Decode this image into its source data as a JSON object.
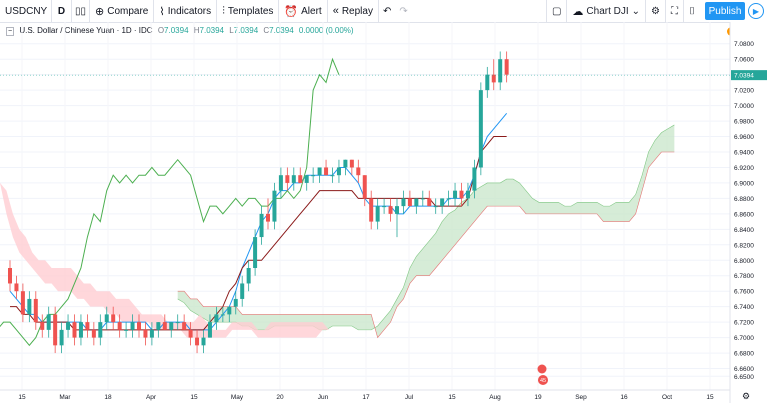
{
  "toolbar": {
    "symbol": "USDCNY",
    "interval": "D",
    "compare": "Compare",
    "indicators": "Indicators",
    "templates": "Templates",
    "alert": "Alert",
    "replay": "Replay",
    "chart_name": "Chart DJI",
    "publish": "Publish"
  },
  "legend": {
    "title": "U.S. Dollar / Chinese Yuan · 1D · IDC",
    "open_label": "O",
    "open": "7.0394",
    "high_label": "H",
    "high": "7.0394",
    "low_label": "L",
    "low": "7.0394",
    "close_label": "C",
    "close": "7.0394",
    "change": "0.0000 (0.00%)"
  },
  "alert_badge": "!",
  "price_label": "7.0394",
  "event_label": "45",
  "colors": {
    "up": "#26a69a",
    "down": "#ef5350",
    "accent": "#2196f3",
    "conversion": "#2196f3",
    "base": "#8b1a1a",
    "lagging": "#4caf50",
    "cloud_bull": "#c8e6c9",
    "cloud_bear": "#ffcdd2"
  },
  "chart_data": {
    "type": "candlestick",
    "indicator": "Ichimoku Cloud",
    "ylim": [
      6.64,
      7.09
    ],
    "y_ticks": [
      "7.0800",
      "7.0600",
      "7.0400",
      "7.0200",
      "7.0000",
      "6.9800",
      "6.9600",
      "6.9400",
      "6.9200",
      "6.9000",
      "6.8800",
      "6.8600",
      "6.8400",
      "6.8200",
      "6.8000",
      "6.7800",
      "6.7600",
      "6.7400",
      "6.7200",
      "6.7000",
      "6.6800",
      "6.6600",
      "6.6500"
    ],
    "x_ticks": [
      "15",
      "Mar",
      "18",
      "Apr",
      "15",
      "May",
      "20",
      "Jun",
      "17",
      "Jul",
      "15",
      "Aug",
      "19",
      "Sep",
      "16",
      "Oct",
      "15"
    ],
    "last_price": 7.0394,
    "candles": [
      [
        6.79,
        6.8,
        6.76,
        6.77
      ],
      [
        6.77,
        6.78,
        6.75,
        6.76
      ],
      [
        6.76,
        6.77,
        6.72,
        6.73
      ],
      [
        6.73,
        6.76,
        6.72,
        6.75
      ],
      [
        6.75,
        6.76,
        6.71,
        6.72
      ],
      [
        6.72,
        6.73,
        6.7,
        6.71
      ],
      [
        6.71,
        6.74,
        6.7,
        6.73
      ],
      [
        6.73,
        6.74,
        6.68,
        6.69
      ],
      [
        6.69,
        6.72,
        6.68,
        6.71
      ],
      [
        6.71,
        6.73,
        6.7,
        6.72
      ],
      [
        6.72,
        6.73,
        6.69,
        6.7
      ],
      [
        6.7,
        6.73,
        6.69,
        6.72
      ],
      [
        6.72,
        6.73,
        6.7,
        6.71
      ],
      [
        6.71,
        6.72,
        6.69,
        6.7
      ],
      [
        6.7,
        6.73,
        6.69,
        6.72
      ],
      [
        6.72,
        6.74,
        6.71,
        6.73
      ],
      [
        6.73,
        6.74,
        6.71,
        6.72
      ],
      [
        6.72,
        6.73,
        6.7,
        6.71
      ],
      [
        6.71,
        6.72,
        6.7,
        6.71
      ],
      [
        6.71,
        6.73,
        6.7,
        6.72
      ],
      [
        6.72,
        6.73,
        6.7,
        6.71
      ],
      [
        6.71,
        6.72,
        6.69,
        6.7
      ],
      [
        6.7,
        6.72,
        6.69,
        6.71
      ],
      [
        6.71,
        6.72,
        6.7,
        6.72
      ],
      [
        6.72,
        6.73,
        6.71,
        6.71
      ],
      [
        6.71,
        6.72,
        6.7,
        6.72
      ],
      [
        6.72,
        6.73,
        6.71,
        6.72
      ],
      [
        6.72,
        6.73,
        6.71,
        6.71
      ],
      [
        6.71,
        6.72,
        6.69,
        6.7
      ],
      [
        6.7,
        6.71,
        6.68,
        6.69
      ],
      [
        6.69,
        6.71,
        6.68,
        6.7
      ],
      [
        6.7,
        6.73,
        6.7,
        6.72
      ],
      [
        6.72,
        6.74,
        6.71,
        6.73
      ],
      [
        6.73,
        6.74,
        6.72,
        6.73
      ],
      [
        6.73,
        6.74,
        6.72,
        6.74
      ],
      [
        6.74,
        6.76,
        6.73,
        6.75
      ],
      [
        6.75,
        6.78,
        6.74,
        6.77
      ],
      [
        6.77,
        6.8,
        6.76,
        6.79
      ],
      [
        6.79,
        6.84,
        6.78,
        6.83
      ],
      [
        6.83,
        6.87,
        6.82,
        6.86
      ],
      [
        6.86,
        6.88,
        6.84,
        6.85
      ],
      [
        6.85,
        6.9,
        6.84,
        6.89
      ],
      [
        6.89,
        6.92,
        6.88,
        6.91
      ],
      [
        6.91,
        6.92,
        6.89,
        6.9
      ],
      [
        6.9,
        6.92,
        6.89,
        6.91
      ],
      [
        6.91,
        6.92,
        6.9,
        6.9
      ],
      [
        6.9,
        6.91,
        6.89,
        6.91
      ],
      [
        6.91,
        6.92,
        6.9,
        6.91
      ],
      [
        6.91,
        6.92,
        6.9,
        6.92
      ],
      [
        6.92,
        6.93,
        6.91,
        6.91
      ],
      [
        6.91,
        6.92,
        6.9,
        6.91
      ],
      [
        6.91,
        6.93,
        6.9,
        6.92
      ],
      [
        6.92,
        6.93,
        6.91,
        6.93
      ],
      [
        6.93,
        6.93,
        6.91,
        6.92
      ],
      [
        6.92,
        6.93,
        6.9,
        6.91
      ],
      [
        6.91,
        6.91,
        6.87,
        6.88
      ],
      [
        6.88,
        6.89,
        6.84,
        6.85
      ],
      [
        6.85,
        6.88,
        6.84,
        6.87
      ],
      [
        6.87,
        6.88,
        6.86,
        6.87
      ],
      [
        6.87,
        6.88,
        6.85,
        6.86
      ],
      [
        6.86,
        6.88,
        6.83,
        6.87
      ],
      [
        6.87,
        6.89,
        6.86,
        6.88
      ],
      [
        6.88,
        6.89,
        6.87,
        6.87
      ],
      [
        6.87,
        6.88,
        6.86,
        6.88
      ],
      [
        6.88,
        6.89,
        6.87,
        6.88
      ],
      [
        6.88,
        6.89,
        6.87,
        6.87
      ],
      [
        6.87,
        6.88,
        6.86,
        6.87
      ],
      [
        6.87,
        6.88,
        6.86,
        6.88
      ],
      [
        6.88,
        6.89,
        6.87,
        6.88
      ],
      [
        6.88,
        6.9,
        6.87,
        6.89
      ],
      [
        6.89,
        6.9,
        6.87,
        6.88
      ],
      [
        6.88,
        6.9,
        6.87,
        6.89
      ],
      [
        6.89,
        6.93,
        6.88,
        6.92
      ],
      [
        6.92,
        7.03,
        6.91,
        7.02
      ],
      [
        7.02,
        7.05,
        7.01,
        7.04
      ],
      [
        7.04,
        7.06,
        7.02,
        7.03
      ],
      [
        7.03,
        7.07,
        7.02,
        7.06
      ],
      [
        7.06,
        7.07,
        7.03,
        7.04
      ]
    ],
    "conversion_line": [
      6.76,
      6.75,
      6.74,
      6.73,
      6.73,
      6.72,
      6.72,
      6.72,
      6.72,
      6.72,
      6.72,
      6.72,
      6.71,
      6.71,
      6.71,
      6.72,
      6.72,
      6.72,
      6.72,
      6.72,
      6.72,
      6.72,
      6.71,
      6.71,
      6.72,
      6.72,
      6.72,
      6.72,
      6.71,
      6.71,
      6.71,
      6.71,
      6.72,
      6.73,
      6.74,
      6.76,
      6.79,
      6.81,
      6.83,
      6.85,
      6.86,
      6.88,
      6.89,
      6.89,
      6.9,
      6.9,
      6.91,
      6.91,
      6.91,
      6.91,
      6.91,
      6.92,
      6.92,
      6.91,
      6.9,
      6.88,
      6.87,
      6.87,
      6.87,
      6.87,
      6.86,
      6.86,
      6.87,
      6.87,
      6.87,
      6.87,
      6.87,
      6.87,
      6.88,
      6.88,
      6.88,
      6.89,
      6.91,
      6.94,
      6.96,
      6.97,
      6.98,
      6.99
    ],
    "base_line": [
      6.74,
      6.74,
      6.73,
      6.73,
      6.72,
      6.72,
      6.72,
      6.72,
      6.72,
      6.72,
      6.71,
      6.71,
      6.71,
      6.71,
      6.71,
      6.71,
      6.71,
      6.71,
      6.71,
      6.71,
      6.71,
      6.71,
      6.71,
      6.71,
      6.71,
      6.71,
      6.71,
      6.71,
      6.71,
      6.71,
      6.71,
      6.72,
      6.73,
      6.74,
      6.76,
      6.77,
      6.79,
      6.8,
      6.8,
      6.8,
      6.81,
      6.82,
      6.83,
      6.84,
      6.85,
      6.86,
      6.87,
      6.88,
      6.89,
      6.89,
      6.89,
      6.89,
      6.89,
      6.89,
      6.88,
      6.88,
      6.88,
      6.88,
      6.88,
      6.88,
      6.88,
      6.88,
      6.88,
      6.88,
      6.88,
      6.88,
      6.87,
      6.87,
      6.87,
      6.87,
      6.87,
      6.88,
      6.91,
      6.94,
      6.95,
      6.96,
      6.96,
      6.96
    ]
  }
}
